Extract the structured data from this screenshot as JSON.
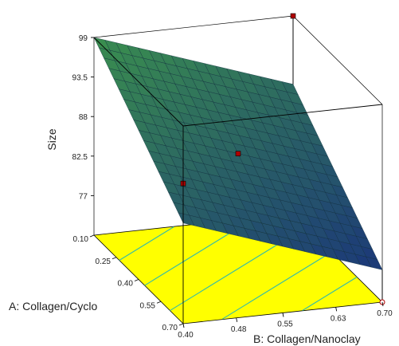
{
  "chart_data": {
    "type": "surface",
    "zlabel": "Size",
    "xlabel": "A: Collagen/Cyclo",
    "ylabel": "B: Collagen/Nanoclay",
    "x_ticks": [
      "0.10",
      "0.25",
      "0.40",
      "0.55",
      "0.70"
    ],
    "y_ticks": [
      "0.40",
      "0.48",
      "0.55",
      "0.63",
      "0.70"
    ],
    "z_ticks": [
      "99",
      "93.5",
      "88",
      "82.5",
      "77"
    ],
    "xlim": [
      0.1,
      0.7
    ],
    "ylim": [
      0.4,
      0.7
    ],
    "zlim": [
      71.5,
      99
    ],
    "surface": {
      "corners": [
        {
          "x": 0.1,
          "y": 0.4,
          "z": 99.0
        },
        {
          "x": 0.7,
          "y": 0.4,
          "z": 85.5
        },
        {
          "x": 0.1,
          "y": 0.7,
          "z": 89.5
        },
        {
          "x": 0.7,
          "y": 0.7,
          "z": 76.0
        }
      ]
    },
    "design_points": [
      {
        "x": 0.1,
        "y": 0.7,
        "z": 99.0
      },
      {
        "x": 0.4,
        "y": 0.55,
        "z": 87.5
      },
      {
        "x": 0.7,
        "y": 0.4,
        "z": 91.0
      },
      {
        "x": 0.7,
        "y": 0.7,
        "z": 71.5
      }
    ],
    "floor_contour_count": 5,
    "colors": {
      "floor": "#ffff00",
      "contour": "#33bbaa",
      "surface_high": "#3a8f4e",
      "surface_low": "#1c3a78",
      "point": "#b00000"
    }
  }
}
